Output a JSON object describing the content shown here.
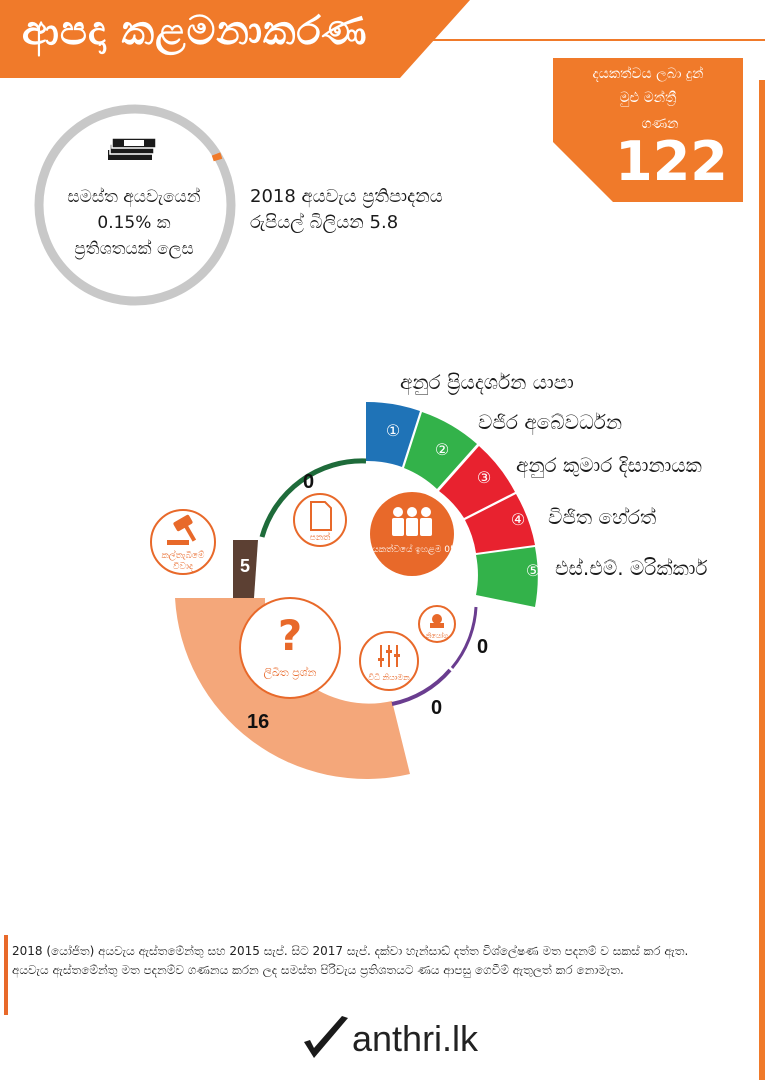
{
  "header": {
    "title": "ආපදා කළමනාකරණ"
  },
  "mp_count_box": {
    "line1": "දයකත්වය ලබා දුන්",
    "line2": "මුළු මන්ත්‍රී",
    "line3": "ගණන",
    "count": "122"
  },
  "budget_ring": {
    "line1": "සමස්ත අයවැයෙන්",
    "line2": "0.15% ක",
    "line3": "ප්‍රතිශතයක් ලෙස",
    "percentage": 0.15
  },
  "budget_text": {
    "line1": "2018 අයවැය ප්‍රතිපාදනය",
    "line2": "රුපියල් බිලියන 5.8"
  },
  "top_mps": [
    {
      "rank": "①",
      "name": "අනුර ප්‍රියදර්ශන යාපා",
      "color": "#1f73b7"
    },
    {
      "rank": "②",
      "name": "වජිර අබේවර්ධන",
      "color": "#33b24a"
    },
    {
      "rank": "③",
      "name": "අනුර කුමාර දිසානායක",
      "color": "#e8222f"
    },
    {
      "rank": "④",
      "name": "විජිත හේරත්",
      "color": "#e8222f"
    },
    {
      "rank": "⑤",
      "name": "එස්.එම්. මරික්කාර්",
      "color": "#33b24a"
    }
  ],
  "activities": {
    "top_contributors_label": "දායකත්වයේ ඉහළම 05",
    "bills": {
      "label": "පනත්",
      "count": "0",
      "color": "#1e6b3a"
    },
    "debates": {
      "label": "කල්තැබීමේ විවාද",
      "count": "5",
      "color": "#5c4033"
    },
    "written_questions": {
      "label": "ලිඛිත ප්‍රශ්න",
      "count": "16",
      "color": "#f4a77a"
    },
    "regulations": {
      "label": "විධි නියාමන",
      "count": "0",
      "color": "#6a3d8f"
    },
    "motions": {
      "label": "නියෝග",
      "count": "0",
      "color": "#6a3d8f"
    }
  },
  "colors": {
    "accent": "#f07a2a",
    "ring_gray": "#c8c8c8"
  },
  "footer": {
    "note1": "2018 (යෝජිත) අයවැය ඇස්තමේන්තු සහ 2015 සැප්. සිට 2017 සැප්. දක්වා හැන්සාඩ් දත්ත විශ්ලේෂණ මත පදනම් ව සකස් කර ඇත.",
    "note2": "අයවැය ඇස්තමේන්තු මත පදනම්ව ගණනය කරන ලද සමස්ත පිරිවැය ප්‍රතිශතයට ණය ආපසු ගෙවීම් ඇතුලත් කර නොමැත."
  },
  "logo": {
    "text": "anthri.lk"
  }
}
